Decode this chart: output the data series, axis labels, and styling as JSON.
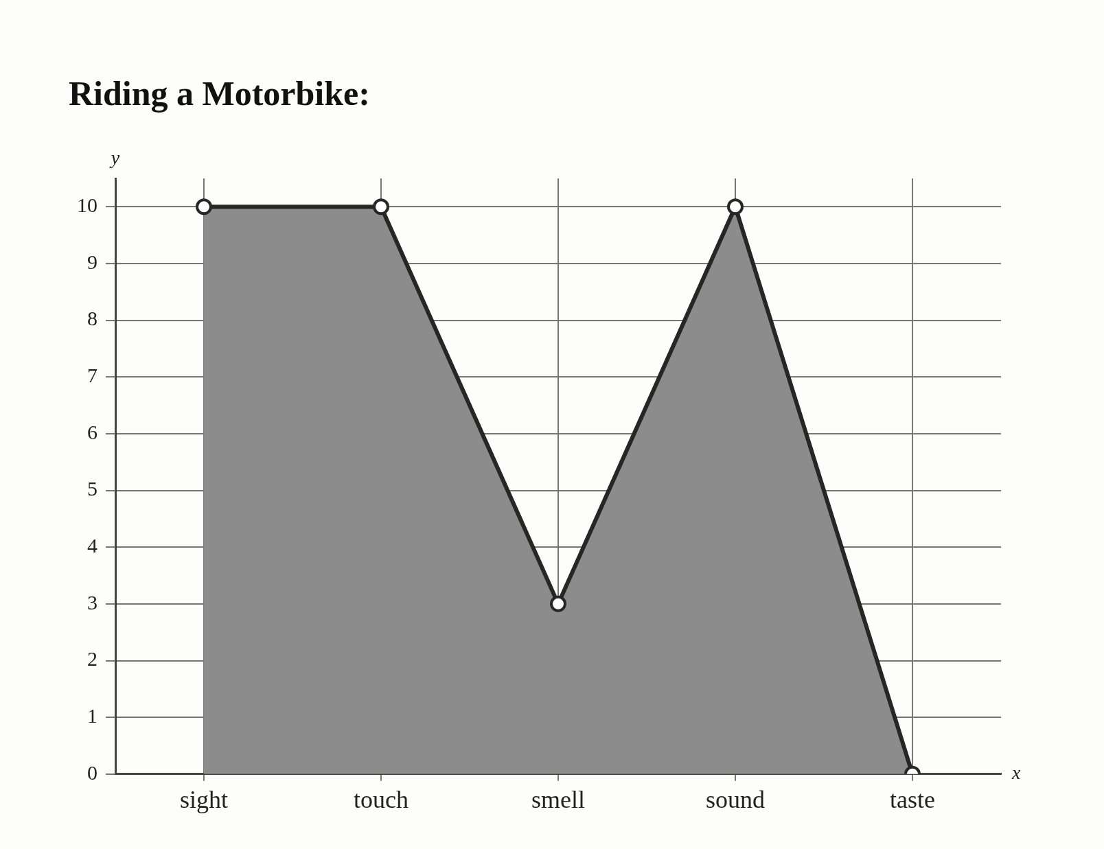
{
  "chart_data": {
    "type": "area",
    "title": "Riding a Motorbike:",
    "xlabel": "x",
    "ylabel": "y",
    "categories": [
      "sight",
      "touch",
      "smell",
      "sound",
      "taste"
    ],
    "series": [
      {
        "color": "#8c8c8c",
        "values": [
          10,
          10,
          3,
          10,
          0
        ]
      }
    ],
    "ylim": [
      0,
      10.5
    ],
    "yticks": [
      0,
      1,
      2,
      3,
      4,
      5,
      6,
      7,
      8,
      9,
      10
    ],
    "grid": true,
    "marker": "circle",
    "line_style": "solid",
    "legend": false
  }
}
